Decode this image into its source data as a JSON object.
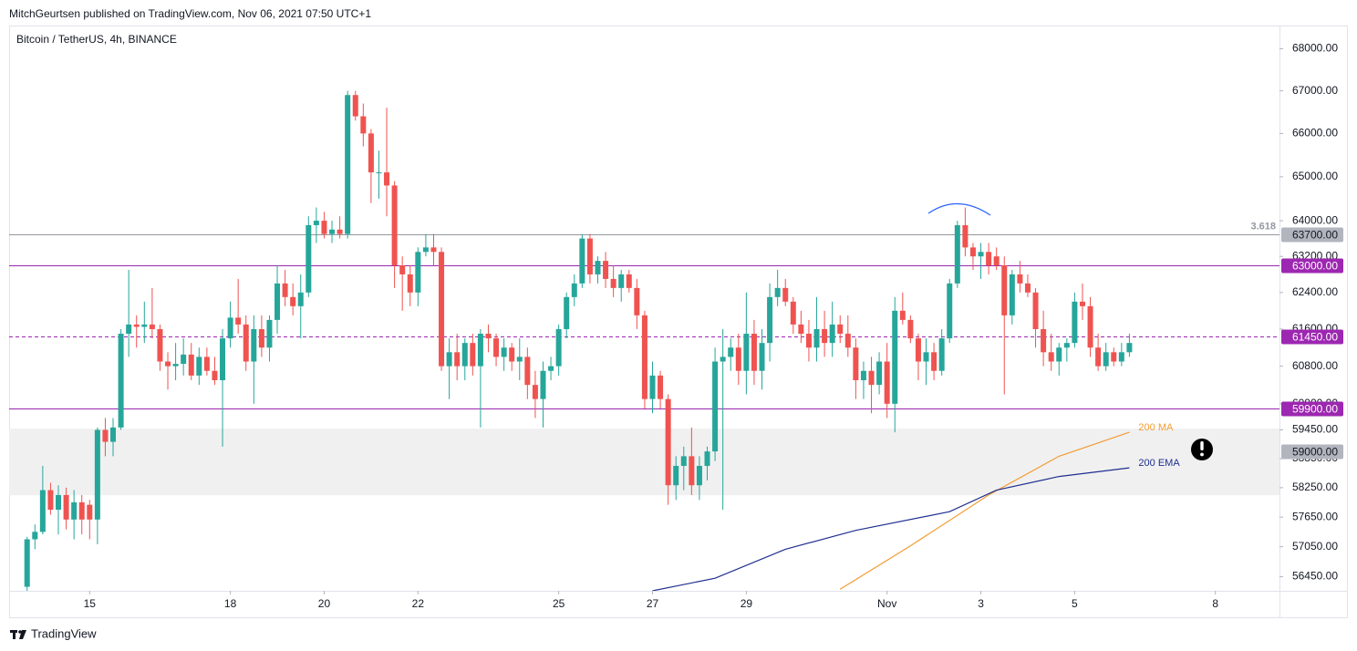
{
  "header": {
    "publisher": "MitchGeurtsen published on TradingView.com, Nov 06, 2021 07:50 UTC+1",
    "brand": "TradingView"
  },
  "chart_data": {
    "type": "candlestick",
    "title": "Bitcoin / TetherUS, 4h, BINANCE",
    "log_scale": true,
    "up_color": "#26a69a",
    "down_color": "#ef5350",
    "open": [
      56250,
      57200,
      57350,
      58200,
      57800,
      58100,
      57600,
      57950,
      57900,
      57600,
      59450,
      59200,
      59500,
      61500,
      61700,
      61650,
      61700,
      61600,
      60900,
      60800,
      60850,
      61050,
      60600,
      61000,
      60700,
      60500,
      61400,
      61850,
      61700,
      60900,
      61600,
      61200,
      61800,
      62600,
      62300,
      62100,
      62400,
      63900,
      64000,
      63700,
      63800,
      63700,
      66900,
      66400,
      66000,
      65100,
      65100,
      64800,
      63000,
      62800,
      62400,
      63300,
      63400,
      63300,
      60800,
      61100,
      60800,
      61300,
      60800,
      61500,
      61400,
      61000,
      61200,
      60900,
      61000,
      60400,
      60100,
      60700,
      60800,
      61600,
      62300,
      62600,
      63600,
      62800,
      63100,
      62700,
      62500,
      62800,
      62500,
      61900,
      60100,
      60600,
      60100,
      58300,
      58700,
      58900,
      58300,
      58700,
      59000,
      60900,
      61000,
      61200,
      60700,
      61500,
      60700,
      61300,
      62300,
      62500,
      62200,
      61700,
      61500,
      61200,
      61600,
      61300,
      61700,
      61500,
      61200,
      60500,
      60700,
      60400,
      60900,
      60000,
      62000,
      61800,
      61400,
      60900,
      61100,
      60700,
      61400,
      62600,
      63900,
      63400,
      63200,
      63300,
      63200,
      63000,
      61900,
      62800,
      62600,
      62400,
      61600,
      61100,
      60900,
      61200,
      61300,
      62200,
      62100,
      61200,
      60800,
      61100,
      60900,
      61100
    ],
    "high": [
      57250,
      57500,
      58700,
      58350,
      58300,
      58250,
      58200,
      58100,
      58000,
      59500,
      59700,
      59700,
      61600,
      62900,
      61900,
      62200,
      62500,
      61700,
      61100,
      61300,
      61400,
      61300,
      61200,
      61200,
      61000,
      61600,
      62200,
      62700,
      61900,
      61900,
      61900,
      61900,
      63000,
      62900,
      62600,
      62800,
      64100,
      64300,
      64200,
      64000,
      64100,
      67000,
      67000,
      66700,
      66100,
      65600,
      66600,
      64900,
      63200,
      63000,
      63400,
      63700,
      63700,
      63400,
      61400,
      61500,
      61400,
      61500,
      61600,
      61700,
      61500,
      61400,
      61300,
      61400,
      61200,
      60700,
      60900,
      61000,
      61700,
      62400,
      62800,
      63700,
      63700,
      63200,
      63300,
      63000,
      62900,
      62900,
      62700,
      62000,
      60900,
      60700,
      60200,
      58900,
      59100,
      59500,
      58900,
      59100,
      61200,
      61600,
      61400,
      61500,
      62400,
      61800,
      61600,
      62600,
      62900,
      62700,
      62300,
      62000,
      61800,
      62300,
      62000,
      62200,
      61900,
      61900,
      61400,
      60900,
      61000,
      61100,
      61300,
      62300,
      62400,
      61900,
      61500,
      61400,
      61300,
      61600,
      62700,
      64000,
      64300,
      63500,
      63500,
      63500,
      63400,
      63200,
      62900,
      63100,
      62800,
      62500,
      62000,
      61500,
      61300,
      61400,
      62400,
      62600,
      62300,
      61500,
      61300,
      61200,
      61300,
      61500
    ],
    "low": [
      56100,
      57000,
      57300,
      57700,
      57300,
      57400,
      57200,
      57300,
      57200,
      57100,
      58900,
      58900,
      59450,
      61000,
      61200,
      61300,
      61400,
      60700,
      60300,
      60500,
      60600,
      60500,
      60400,
      60600,
      60400,
      59100,
      61200,
      61500,
      60700,
      60000,
      61000,
      60900,
      61500,
      62100,
      61900,
      61400,
      62300,
      63500,
      63600,
      63500,
      63600,
      63600,
      66300,
      65700,
      64400,
      64500,
      64100,
      62500,
      62000,
      62100,
      62100,
      63200,
      63000,
      60700,
      60100,
      60500,
      60500,
      60600,
      59500,
      61100,
      60800,
      60700,
      60700,
      60500,
      60100,
      59700,
      59500,
      60500,
      60600,
      61400,
      62100,
      62500,
      62600,
      62600,
      62500,
      62300,
      62200,
      62400,
      61600,
      59900,
      59800,
      59900,
      57900,
      58000,
      58200,
      58100,
      58000,
      58400,
      58800,
      57800,
      60700,
      60400,
      60200,
      60400,
      60300,
      60900,
      62100,
      62100,
      61500,
      61300,
      60900,
      60900,
      61000,
      61000,
      61300,
      61000,
      60100,
      60100,
      59800,
      60200,
      59700,
      59400,
      61700,
      61300,
      60500,
      60400,
      60500,
      60600,
      61300,
      62500,
      63200,
      62900,
      62700,
      62800,
      62900,
      60200,
      61700,
      62400,
      62300,
      61200,
      60800,
      60700,
      60600,
      60900,
      61200,
      61800,
      61000,
      60700,
      60700,
      60800,
      60800,
      61000
    ],
    "close": [
      57200,
      57350,
      58200,
      57800,
      58100,
      57600,
      57950,
      57600,
      57600,
      59450,
      59200,
      59500,
      61500,
      61700,
      61650,
      61700,
      61600,
      60900,
      60800,
      60850,
      61050,
      60600,
      61000,
      60700,
      60500,
      61400,
      61850,
      61700,
      60900,
      61600,
      61200,
      61800,
      62600,
      62300,
      62100,
      62400,
      63900,
      64000,
      63700,
      63800,
      63700,
      66900,
      66400,
      66000,
      65100,
      65100,
      64800,
      63000,
      62800,
      62400,
      63300,
      63400,
      63300,
      60800,
      61100,
      60800,
      61300,
      60800,
      61500,
      61400,
      61000,
      61200,
      60900,
      61000,
      60400,
      60100,
      60700,
      60800,
      61600,
      62300,
      62600,
      63600,
      62800,
      63100,
      62700,
      62500,
      62800,
      62500,
      61900,
      60100,
      60600,
      60100,
      58300,
      58700,
      58900,
      58300,
      58700,
      59000,
      60900,
      61000,
      61200,
      60700,
      61500,
      60700,
      61300,
      62300,
      62500,
      62200,
      61700,
      61500,
      61200,
      61600,
      61300,
      61700,
      61500,
      61200,
      60500,
      60700,
      60400,
      60900,
      60000,
      62000,
      61800,
      61400,
      60900,
      61100,
      60700,
      61400,
      62600,
      63900,
      63400,
      63200,
      63300,
      63000,
      63000,
      61900,
      62800,
      62600,
      62400,
      61600,
      61100,
      60900,
      61200,
      61300,
      62200,
      62100,
      61200,
      60800,
      61100,
      60900,
      61100,
      61300
    ],
    "series": [
      {
        "name": "200 MA",
        "color": "#f39c33",
        "x": [
          104,
          113,
          123,
          132,
          141
        ],
        "values": [
          56200,
          57070,
          58100,
          58900,
          59400
        ]
      },
      {
        "name": "200 EMA",
        "color": "#1f2f8f",
        "x": [
          80,
          88,
          97,
          106,
          118,
          124,
          132,
          141
        ],
        "values": [
          56170,
          56420,
          57000,
          57380,
          57760,
          58200,
          58480,
          58660
        ]
      }
    ],
    "levels": [
      {
        "value": 63700,
        "label": "63700.00",
        "note": "3.618",
        "color": "#9598a1",
        "tag_color": "#b2b5be",
        "dashed": false
      },
      {
        "value": 63000,
        "label": "63000.00",
        "color": "#9c27b0",
        "tag_color": "#9c27b0",
        "dashed": false
      },
      {
        "value": 61450,
        "label": "61450.00",
        "color": "#9c27b0",
        "tag_color": "#9c27b0",
        "dashed": true
      },
      {
        "value": 59900,
        "label": "59900.00",
        "color": "#9c27b0",
        "tag_color": "#9c27b0",
        "dashed": false
      },
      {
        "value": 59000,
        "label": "59000.00",
        "tag_color": "#b2b5be"
      }
    ],
    "zone": {
      "range": [
        59475,
        58095
      ],
      "color": "#f0f0f0"
    },
    "xlim": [
      -2.3,
      160.2
    ],
    "xticks": [
      {
        "value": 8,
        "label": "15"
      },
      {
        "value": 26,
        "label": "18"
      },
      {
        "value": 38,
        "label": "20"
      },
      {
        "value": 50,
        "label": "22"
      },
      {
        "value": 68,
        "label": "25"
      },
      {
        "value": 80,
        "label": "27"
      },
      {
        "value": 92,
        "label": "29"
      },
      {
        "value": 110,
        "label": "Nov"
      },
      {
        "value": 122,
        "label": "3"
      },
      {
        "value": 134,
        "label": "5"
      },
      {
        "value": 152,
        "label": "8"
      }
    ],
    "ylim": [
      56170,
      68560
    ],
    "yticks": [
      {
        "value": 68000,
        "label": "68000.00"
      },
      {
        "value": 67000,
        "label": "67000.00"
      },
      {
        "value": 66000,
        "label": "66000.00"
      },
      {
        "value": 65000,
        "label": "65000.00"
      },
      {
        "value": 64000,
        "label": "64000.00"
      },
      {
        "value": 63200,
        "label": "63200.00"
      },
      {
        "value": 62400,
        "label": "62400.00"
      },
      {
        "value": 61600,
        "label": "61600.00"
      },
      {
        "value": 60800,
        "label": "60800.00"
      },
      {
        "value": 60000,
        "label": "60000.00"
      },
      {
        "value": 59450,
        "label": "59450.00"
      },
      {
        "value": 58850,
        "label": "58850.00"
      },
      {
        "value": 58250,
        "label": "58250.00"
      },
      {
        "value": 57650,
        "label": "57650.00"
      },
      {
        "value": 57050,
        "label": "57050.00"
      },
      {
        "value": 56450,
        "label": "56450.00"
      }
    ]
  }
}
